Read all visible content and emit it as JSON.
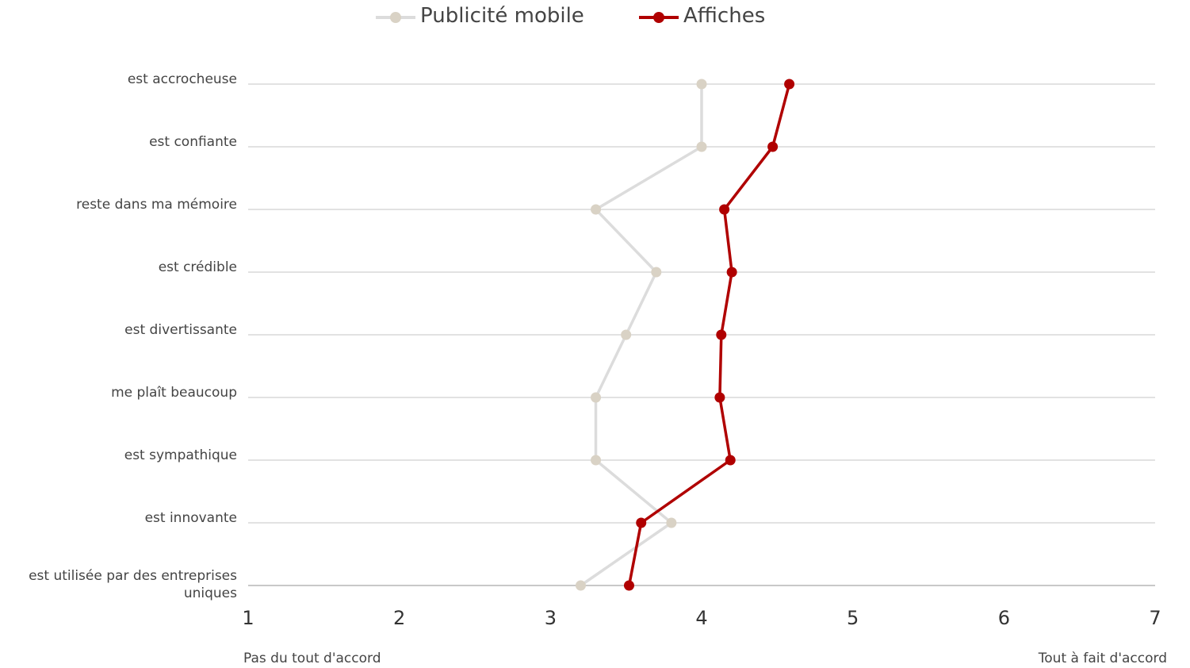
{
  "chart_data": {
    "type": "line",
    "orientation": "horizontal",
    "categories": [
      "est accrocheuse",
      "est confiante",
      "reste dans ma mémoire",
      "est crédible",
      "est divertissante",
      "me plaît beaucoup",
      "est sympathique",
      "est innovante",
      "est utilisée par des entreprises uniques"
    ],
    "series": [
      {
        "name": "Publicité mobile",
        "color": "#dcdcdc",
        "marker_color": "#d9d2c5",
        "values": [
          4.0,
          4.0,
          3.3,
          3.7,
          3.5,
          3.3,
          3.3,
          3.8,
          3.2
        ]
      },
      {
        "name": "Affiches",
        "color": "#b00000",
        "marker_color": "#b00000",
        "values": [
          4.58,
          4.47,
          4.15,
          4.2,
          4.13,
          4.12,
          4.19,
          3.6,
          3.52
        ]
      }
    ],
    "xlim": [
      1,
      7
    ],
    "xticks": [
      "1",
      "2",
      "3",
      "4",
      "5",
      "6",
      "7"
    ],
    "x_min_label": "Pas du tout d'accord",
    "x_max_label": "Tout à fait d'accord",
    "grid": true,
    "legend_position": "top-center"
  }
}
